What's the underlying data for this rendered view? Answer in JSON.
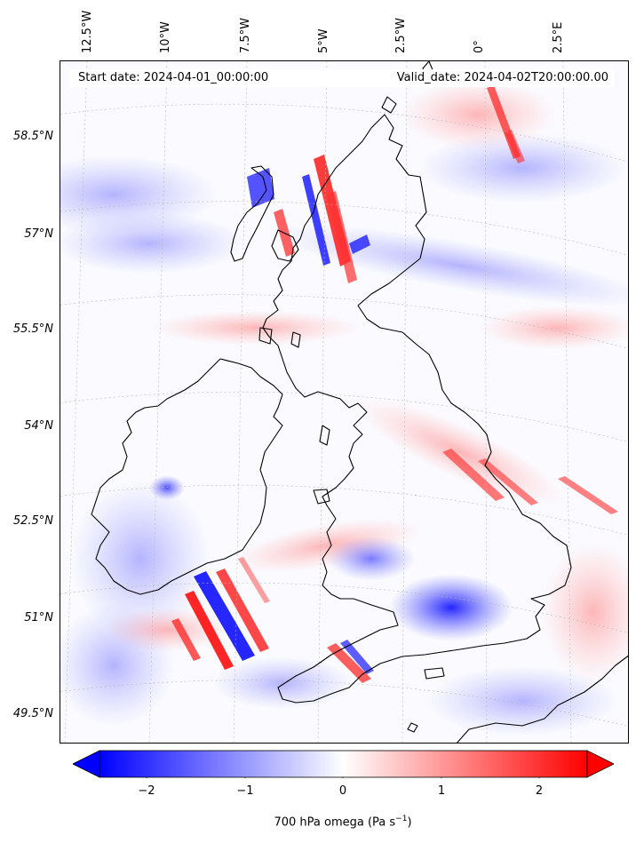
{
  "map": {
    "start_date": "Start date: 2024-04-01_00:00:00",
    "valid_date": "Valid_date: 2024-04-02T20:00:00.00",
    "lon_labels": [
      "12.5°W",
      "10°W",
      "7.5°W",
      "5°W",
      "2.5°W",
      "0°",
      "2.5°E"
    ],
    "lat_labels": [
      "58.5°N",
      "57°N",
      "55.5°N",
      "54°N",
      "52.5°N",
      "51°N",
      "49.5°N"
    ],
    "colors": {
      "negative": "#0000ff",
      "positive": "#ff0000",
      "zero": "#ffffff",
      "coast": "#000000",
      "grid": "#b0b0b0"
    }
  },
  "colorbar": {
    "ticks": [
      "−2",
      "−1",
      "0",
      "1",
      "2"
    ],
    "label": "700 hPa omega (Pa s",
    "label_sup": "−1",
    "label_end": ")",
    "range": [
      -2.5,
      2.5
    ],
    "cmap": "bwr"
  }
}
